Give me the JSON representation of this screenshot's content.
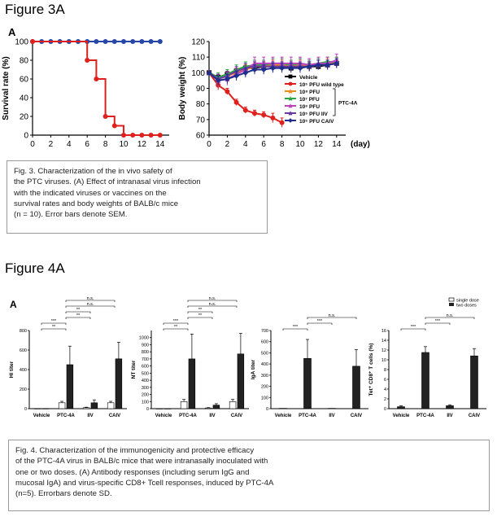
{
  "figure3": {
    "heading": "Figure 3A",
    "panel_letter": "A",
    "caption": [
      "Fig. 3. Characterization of the in vivo safety of",
      "the PTC viruses. (A) Effect of intranasal virus infection",
      "with the indicated viruses or vaccines on the",
      "survival rates and body weights of BALB/c mice",
      "(n = 10). Error bars denote SEM."
    ]
  },
  "figure4": {
    "heading": "Figure 4A",
    "panel_letter": "A",
    "legend": {
      "single": "single dose",
      "two": "two doses"
    },
    "caption": [
      "Fig. 4. Characterization of the immunogenicity and protective efficacy",
      "of the PTC-4A virus in BALB/c mice that were intranasally inoculated with",
      "one or two doses. (A) Antibody responses (including serum IgG and",
      "mucosal IgA) and virus-specific CD8+ Tcell responses, induced by PTC-4A",
      "(n=5). Errorbars denote SD."
    ]
  },
  "colors": {
    "blue": "#2646a8",
    "red": "#e0201c",
    "black": "#000000",
    "orange": "#f08a1a",
    "green": "#2aa848",
    "cyan": "#22a8b8",
    "magenta": "#c040c0",
    "purple": "#6a3aa0",
    "navy": "#1f2f8c"
  },
  "chart_data": [
    {
      "type": "line",
      "xlabel": "",
      "ylabel": "Survival rate (%)",
      "xlim": [
        0,
        15
      ],
      "ylim": [
        0,
        100
      ],
      "xticks": [
        0,
        2,
        4,
        6,
        8,
        10,
        12,
        14
      ],
      "yticks": [
        0,
        20,
        40,
        60,
        80,
        100
      ],
      "series": [
        {
          "color": "#2646a8",
          "marker": "circle",
          "x": [
            0,
            1,
            2,
            3,
            4,
            5,
            6,
            7,
            8,
            9,
            10,
            11,
            12,
            13,
            14
          ],
          "y": [
            100,
            100,
            100,
            100,
            100,
            100,
            100,
            100,
            100,
            100,
            100,
            100,
            100,
            100,
            100
          ]
        },
        {
          "color": "#e0201c",
          "marker": "circle",
          "step": true,
          "x": [
            0,
            6,
            7,
            8,
            9,
            10,
            11,
            12,
            13,
            14
          ],
          "y": [
            100,
            80,
            60,
            20,
            10,
            0,
            0,
            0,
            0,
            0
          ]
        }
      ]
    },
    {
      "type": "line",
      "xlabel": "(day)",
      "ylabel": "Body weight (%)",
      "xlim": [
        0,
        15
      ],
      "ylim": [
        60,
        120
      ],
      "xticks": [
        0,
        2,
        4,
        6,
        8,
        10,
        12,
        14
      ],
      "yticks": [
        60,
        70,
        80,
        90,
        100,
        110,
        120
      ],
      "legend_bracket": "PTC-4A",
      "series": [
        {
          "name": "Vehicle",
          "color": "#000000",
          "marker": "square",
          "x": [
            0,
            1,
            2,
            3,
            4,
            5,
            6,
            7,
            8,
            9,
            10,
            11,
            12,
            13,
            14
          ],
          "y": [
            100,
            97,
            99,
            101,
            103,
            103,
            104,
            104,
            104,
            103,
            104,
            104,
            104,
            105,
            106
          ],
          "err": [
            0,
            2,
            2,
            2,
            2,
            2,
            2,
            2,
            2,
            2,
            2,
            2,
            2,
            2,
            2
          ]
        },
        {
          "name": "10⁵ PFU wild type",
          "color": "#e0201c",
          "marker": "circle",
          "x": [
            0,
            1,
            2,
            3,
            4,
            5,
            6,
            7,
            8
          ],
          "y": [
            100,
            92,
            88,
            81,
            76,
            74,
            73,
            71,
            68
          ],
          "err": [
            0,
            3,
            2,
            2,
            2,
            2,
            2,
            3,
            3
          ]
        },
        {
          "name": "10⁸ PFU",
          "color": "#f08a1a",
          "marker": "triangle",
          "x": [
            0,
            1,
            2,
            3,
            4,
            5,
            6,
            7,
            8,
            9,
            10,
            11,
            12,
            13,
            14
          ],
          "y": [
            100,
            96,
            98,
            100,
            102,
            104,
            104,
            105,
            105,
            105,
            105,
            104,
            105,
            106,
            107
          ],
          "err": [
            0,
            3,
            3,
            3,
            3,
            3,
            3,
            3,
            3,
            3,
            3,
            3,
            3,
            3,
            3
          ]
        },
        {
          "name": "10⁷ PFU",
          "color": "#2aa848",
          "marker": "triangle",
          "x": [
            0,
            1,
            2,
            3,
            4,
            5,
            6,
            7,
            8,
            9,
            10,
            11,
            12,
            13,
            14
          ],
          "y": [
            100,
            97,
            99,
            102,
            104,
            105,
            105,
            106,
            106,
            105,
            106,
            105,
            106,
            107,
            107
          ],
          "err": [
            0,
            3,
            3,
            3,
            3,
            3,
            3,
            3,
            3,
            3,
            3,
            3,
            3,
            3,
            3
          ]
        },
        {
          "name": "10⁶ PFU",
          "color": "#c040c0",
          "marker": "triangle",
          "x": [
            0,
            1,
            2,
            3,
            4,
            5,
            6,
            7,
            8,
            9,
            10,
            11,
            12,
            13,
            14
          ],
          "y": [
            100,
            95,
            96,
            99,
            102,
            106,
            106,
            106,
            106,
            106,
            106,
            105,
            106,
            106,
            108
          ],
          "err": [
            0,
            4,
            4,
            4,
            4,
            4,
            4,
            4,
            4,
            4,
            4,
            4,
            4,
            4,
            4
          ]
        },
        {
          "name": "10⁵ PFU IIV",
          "color": "#6a3aa0",
          "marker": "triangle",
          "x": [
            0,
            1,
            2,
            3,
            4,
            5,
            6,
            7,
            8,
            9,
            10,
            11,
            12,
            13,
            14
          ],
          "y": [
            100,
            96,
            98,
            101,
            103,
            104,
            104,
            104,
            104,
            104,
            104,
            104,
            105,
            105,
            106
          ],
          "err": [
            0,
            3,
            3,
            3,
            3,
            3,
            3,
            3,
            3,
            3,
            3,
            3,
            3,
            3,
            3
          ]
        },
        {
          "name": "10⁵ PFU CAIV",
          "color": "#1f2f8c",
          "marker": "diamond",
          "x": [
            0,
            1,
            2,
            3,
            4,
            5,
            6,
            7,
            8,
            9,
            10,
            11,
            12,
            13,
            14
          ],
          "y": [
            100,
            95,
            96,
            98,
            100,
            102,
            102,
            103,
            103,
            103,
            103,
            104,
            105,
            105,
            106
          ],
          "err": [
            0,
            3,
            3,
            3,
            3,
            3,
            3,
            3,
            3,
            3,
            3,
            3,
            3,
            3,
            3
          ]
        }
      ]
    },
    {
      "type": "bar",
      "ylabel": "HI titer",
      "categories": [
        "Vehicle",
        "PTC-4A",
        "IIV",
        "CAIV"
      ],
      "ylim": [
        0,
        800
      ],
      "yticks": [
        0,
        200,
        400,
        600,
        800
      ],
      "series": [
        {
          "name": "single dose",
          "values": [
            2,
            60,
            10,
            60
          ],
          "err": [
            0,
            15,
            5,
            15
          ]
        },
        {
          "name": "two doses",
          "values": [
            2,
            450,
            60,
            510
          ],
          "err": [
            0,
            190,
            30,
            170
          ]
        }
      ],
      "sig": [
        {
          "label": "**",
          "from": 0,
          "to": 1,
          "level": 1
        },
        {
          "label": "***",
          "from": 0,
          "to": 1,
          "level": 2
        },
        {
          "label": "**",
          "from": 1,
          "to": 2,
          "level": 3
        },
        {
          "label": "**",
          "from": 1,
          "to": 2,
          "level": 4
        },
        {
          "label": "n.s.",
          "from": 1,
          "to": 3,
          "level": 5
        },
        {
          "label": "n.s.",
          "from": 1,
          "to": 3,
          "level": 6
        }
      ]
    },
    {
      "type": "bar",
      "ylabel": "NT titer",
      "categories": [
        "Vehicle",
        "PTC-4A",
        "IIV",
        "CAIV"
      ],
      "ylim": [
        0,
        1100
      ],
      "yticks": [
        0,
        100,
        200,
        300,
        400,
        500,
        600,
        700,
        800,
        900,
        1000
      ],
      "series": [
        {
          "name": "single dose",
          "values": [
            2,
            100,
            10,
            100
          ],
          "err": [
            0,
            30,
            5,
            30
          ]
        },
        {
          "name": "two doses",
          "values": [
            2,
            700,
            50,
            770
          ],
          "err": [
            0,
            350,
            20,
            290
          ]
        }
      ],
      "sig": [
        {
          "label": "**",
          "from": 0,
          "to": 1,
          "level": 1
        },
        {
          "label": "***",
          "from": 0,
          "to": 1,
          "level": 2
        },
        {
          "label": "**",
          "from": 1,
          "to": 2,
          "level": 3
        },
        {
          "label": "**",
          "from": 1,
          "to": 2,
          "level": 4
        },
        {
          "label": "n.s.",
          "from": 1,
          "to": 3,
          "level": 5
        },
        {
          "label": "n.s.",
          "from": 1,
          "to": 3,
          "level": 6
        }
      ]
    },
    {
      "type": "bar",
      "ylabel": "IgA titer",
      "categories": [
        "Vehicle",
        "PTC-4A",
        "IIV",
        "CAIV"
      ],
      "ylim": [
        0,
        700
      ],
      "yticks": [
        0,
        100,
        200,
        300,
        400,
        500,
        600,
        700
      ],
      "series": [
        {
          "name": "two doses",
          "values": [
            3,
            450,
            3,
            380
          ],
          "err": [
            0,
            170,
            0,
            150
          ]
        }
      ],
      "sig": [
        {
          "label": "***",
          "from": 0,
          "to": 1,
          "level": 1
        },
        {
          "label": "***",
          "from": 1,
          "to": 2,
          "level": 2
        },
        {
          "label": "n.s.",
          "from": 1,
          "to": 3,
          "level": 3
        }
      ]
    },
    {
      "type": "bar",
      "ylabel": "Tet⁺ CD8⁺ T cells (%)",
      "categories": [
        "Vehicle",
        "PTC-4A",
        "IIV",
        "CAIV"
      ],
      "ylim": [
        0,
        16
      ],
      "yticks": [
        0,
        2,
        4,
        6,
        8,
        10,
        12,
        14,
        16
      ],
      "series": [
        {
          "name": "two doses",
          "values": [
            0.4,
            11.5,
            0.6,
            10.8
          ],
          "err": [
            0.2,
            1.2,
            0.2,
            1.5
          ]
        }
      ],
      "sig": [
        {
          "label": "***",
          "from": 0,
          "to": 1,
          "level": 1
        },
        {
          "label": "***",
          "from": 1,
          "to": 2,
          "level": 2
        },
        {
          "label": "n.s.",
          "from": 1,
          "to": 3,
          "level": 3
        }
      ]
    }
  ]
}
